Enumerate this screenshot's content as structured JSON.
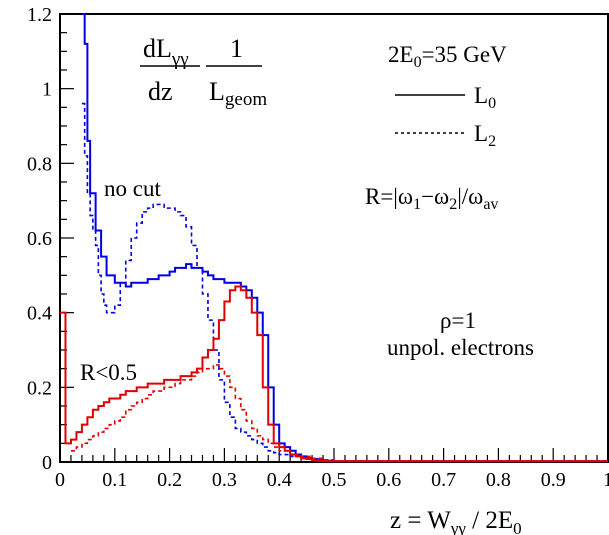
{
  "chart_data": {
    "type": "line",
    "xlabel": "z = W",
    "xlabel_sub": "γγ",
    "xlabel_tail": " / 2E",
    "xlabel_tail_sub": "0",
    "xlim": [
      0,
      1
    ],
    "ylim": [
      0,
      1.2
    ],
    "x_ticks": [
      "0",
      "0.1",
      "0.2",
      "0.3",
      "0.4",
      "0.5",
      "0.6",
      "0.7",
      "0.8",
      "0.9",
      "1"
    ],
    "y_ticks": [
      "0",
      "0.2",
      "0.4",
      "0.6",
      "0.8",
      "1",
      "1.2"
    ],
    "annotations": {
      "formula_num_left": "dL",
      "formula_num_left_sub": "γγ",
      "formula_num_right": "1",
      "formula_den_left": "dz",
      "formula_den_right": "L",
      "formula_den_right_sub": "geom",
      "energy": "2E",
      "energy_sub": "0",
      "energy_tail": "=35 GeV",
      "legend_l0": "L",
      "legend_l0_sub": "0",
      "legend_l2": "L",
      "legend_l2_sub": "2",
      "r_def_a": "R=|ω",
      "r_def_a_sub": "1",
      "r_def_b": "−ω",
      "r_def_b_sub": "2",
      "r_def_c": "|/ω",
      "r_def_c_sub": "av",
      "no_cut": "no cut",
      "r_cut": "R<0.5",
      "rho": "ρ=1",
      "electrons": "unpol. electrons"
    },
    "series": [
      {
        "color": "#0000e0",
        "dash": false,
        "x": [
          0.04,
          0.045,
          0.05,
          0.055,
          0.06,
          0.065,
          0.07,
          0.075,
          0.08,
          0.085,
          0.09,
          0.1,
          0.11,
          0.12,
          0.13,
          0.14,
          0.15,
          0.16,
          0.17,
          0.18,
          0.19,
          0.2,
          0.21,
          0.22,
          0.23,
          0.24,
          0.25,
          0.26,
          0.27,
          0.28,
          0.29,
          0.3,
          0.31,
          0.32,
          0.33,
          0.34,
          0.35,
          0.36,
          0.37,
          0.38,
          0.39,
          0.4,
          0.41,
          0.42,
          0.43,
          0.44,
          0.45,
          0.46,
          0.47,
          0.48,
          0.5,
          1.0
        ],
        "y": [
          1.2,
          1.12,
          0.86,
          0.72,
          0.72,
          0.62,
          0.62,
          0.55,
          0.55,
          0.5,
          0.5,
          0.48,
          0.48,
          0.47,
          0.48,
          0.48,
          0.48,
          0.49,
          0.49,
          0.5,
          0.5,
          0.51,
          0.52,
          0.52,
          0.53,
          0.52,
          0.52,
          0.51,
          0.5,
          0.49,
          0.49,
          0.48,
          0.48,
          0.48,
          0.47,
          0.46,
          0.44,
          0.4,
          0.34,
          0.2,
          0.1,
          0.05,
          0.04,
          0.03,
          0.02,
          0.015,
          0.01,
          0.008,
          0.005,
          0.003,
          0.002,
          0.002
        ]
      },
      {
        "color": "#0000e0",
        "dash": true,
        "x": [
          0.04,
          0.045,
          0.05,
          0.055,
          0.06,
          0.065,
          0.07,
          0.075,
          0.08,
          0.085,
          0.09,
          0.1,
          0.11,
          0.12,
          0.13,
          0.14,
          0.15,
          0.16,
          0.17,
          0.18,
          0.19,
          0.2,
          0.21,
          0.22,
          0.23,
          0.24,
          0.25,
          0.26,
          0.27,
          0.28,
          0.29,
          0.3,
          0.31,
          0.32,
          0.33,
          0.34,
          0.35,
          0.36,
          0.37,
          0.38,
          0.39,
          0.4,
          0.42,
          0.44,
          0.46,
          0.48,
          0.5,
          1.0
        ],
        "y": [
          0.96,
          0.82,
          0.72,
          0.66,
          0.62,
          0.58,
          0.5,
          0.45,
          0.42,
          0.4,
          0.4,
          0.42,
          0.48,
          0.54,
          0.6,
          0.64,
          0.67,
          0.68,
          0.69,
          0.69,
          0.68,
          0.68,
          0.67,
          0.66,
          0.63,
          0.58,
          0.52,
          0.45,
          0.38,
          0.3,
          0.22,
          0.16,
          0.12,
          0.09,
          0.08,
          0.07,
          0.06,
          0.05,
          0.04,
          0.03,
          0.025,
          0.02,
          0.015,
          0.01,
          0.007,
          0.004,
          0.002,
          0.002
        ]
      },
      {
        "color": "#e00000",
        "dash": false,
        "x": [
          0.0,
          0.005,
          0.01,
          0.015,
          0.02,
          0.03,
          0.04,
          0.05,
          0.06,
          0.07,
          0.08,
          0.09,
          0.1,
          0.11,
          0.12,
          0.13,
          0.14,
          0.15,
          0.16,
          0.17,
          0.18,
          0.19,
          0.2,
          0.21,
          0.22,
          0.23,
          0.24,
          0.25,
          0.26,
          0.27,
          0.28,
          0.29,
          0.3,
          0.31,
          0.32,
          0.33,
          0.34,
          0.35,
          0.36,
          0.37,
          0.38,
          0.39,
          0.4,
          0.41,
          0.42,
          0.43,
          0.44,
          0.45,
          0.46,
          0.47,
          0.48,
          0.5,
          1.0
        ],
        "y": [
          0.4,
          0.4,
          0.05,
          0.05,
          0.06,
          0.08,
          0.1,
          0.12,
          0.14,
          0.15,
          0.16,
          0.17,
          0.17,
          0.18,
          0.19,
          0.19,
          0.2,
          0.2,
          0.21,
          0.21,
          0.21,
          0.22,
          0.22,
          0.22,
          0.23,
          0.23,
          0.24,
          0.25,
          0.28,
          0.3,
          0.33,
          0.38,
          0.43,
          0.46,
          0.47,
          0.46,
          0.44,
          0.4,
          0.34,
          0.2,
          0.1,
          0.05,
          0.04,
          0.03,
          0.02,
          0.015,
          0.01,
          0.008,
          0.005,
          0.003,
          0.002,
          0.002,
          0.002
        ]
      },
      {
        "color": "#e00000",
        "dash": true,
        "x": [
          0.02,
          0.03,
          0.04,
          0.05,
          0.06,
          0.07,
          0.08,
          0.09,
          0.1,
          0.11,
          0.12,
          0.13,
          0.14,
          0.15,
          0.16,
          0.17,
          0.18,
          0.19,
          0.2,
          0.21,
          0.22,
          0.23,
          0.24,
          0.25,
          0.26,
          0.27,
          0.28,
          0.29,
          0.3,
          0.31,
          0.32,
          0.33,
          0.34,
          0.35,
          0.36,
          0.37,
          0.38,
          0.39,
          0.4,
          0.42,
          0.44,
          0.46,
          0.48,
          0.5,
          1.0
        ],
        "y": [
          0.03,
          0.04,
          0.05,
          0.06,
          0.07,
          0.08,
          0.09,
          0.1,
          0.11,
          0.12,
          0.14,
          0.15,
          0.16,
          0.17,
          0.18,
          0.19,
          0.19,
          0.2,
          0.2,
          0.21,
          0.22,
          0.22,
          0.23,
          0.24,
          0.25,
          0.25,
          0.26,
          0.25,
          0.23,
          0.2,
          0.17,
          0.14,
          0.11,
          0.09,
          0.07,
          0.06,
          0.05,
          0.04,
          0.03,
          0.02,
          0.015,
          0.01,
          0.006,
          0.003,
          0.002
        ]
      }
    ]
  }
}
